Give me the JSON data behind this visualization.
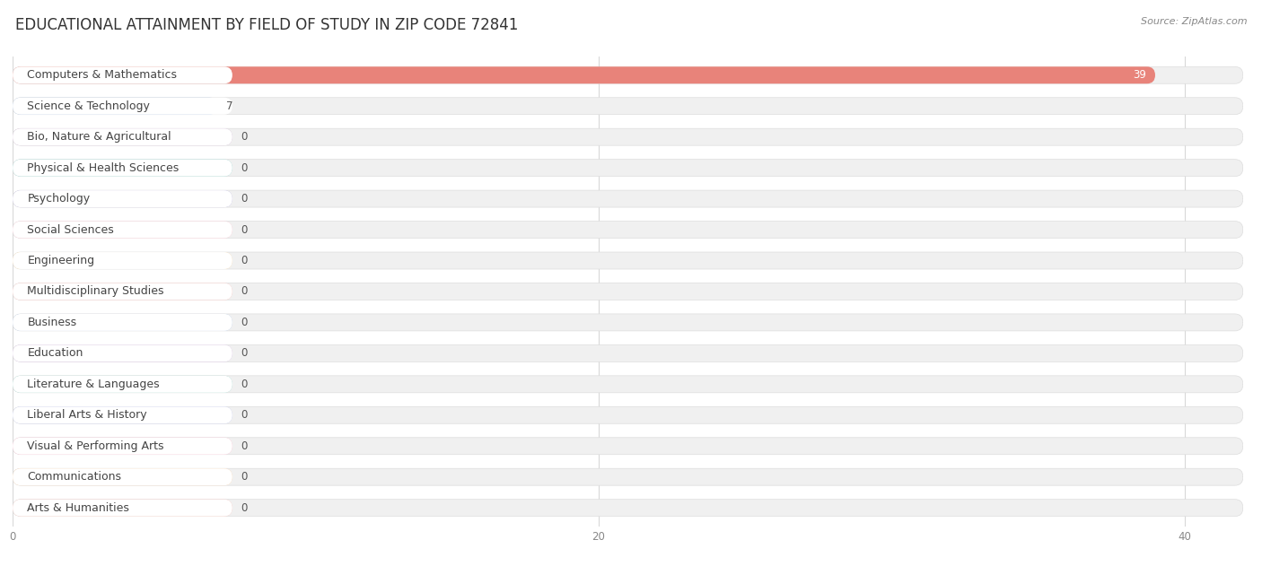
{
  "title": "EDUCATIONAL ATTAINMENT BY FIELD OF STUDY IN ZIP CODE 72841",
  "source": "Source: ZipAtlas.com",
  "categories": [
    "Computers & Mathematics",
    "Science & Technology",
    "Bio, Nature & Agricultural",
    "Physical & Health Sciences",
    "Psychology",
    "Social Sciences",
    "Engineering",
    "Multidisciplinary Studies",
    "Business",
    "Education",
    "Literature & Languages",
    "Liberal Arts & History",
    "Visual & Performing Arts",
    "Communications",
    "Arts & Humanities"
  ],
  "values": [
    39,
    7,
    0,
    0,
    0,
    0,
    0,
    0,
    0,
    0,
    0,
    0,
    0,
    0,
    0
  ],
  "bar_colors": [
    "#E8837A",
    "#A8BEE0",
    "#C8A8CC",
    "#7EC8C0",
    "#B0A8D8",
    "#F4B0C0",
    "#F8D4A0",
    "#F0A8A0",
    "#A8C0E0",
    "#C8A8D8",
    "#90D0C4",
    "#B0B8E8",
    "#F8A8C0",
    "#F8C898",
    "#F0B0A8"
  ],
  "xlim": [
    0,
    42
  ],
  "xticks": [
    0,
    20,
    40
  ],
  "bg_color": "#ffffff",
  "bar_bg_color": "#f0f0f0",
  "bar_white_color": "#ffffff",
  "title_fontsize": 12,
  "label_fontsize": 9,
  "value_fontsize": 8.5,
  "grid_color": "#d8d8d8",
  "text_color": "#444444",
  "value_color_inside": "#ffffff",
  "value_color_outside": "#555555"
}
